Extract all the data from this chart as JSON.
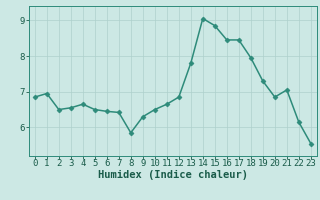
{
  "x": [
    0,
    1,
    2,
    3,
    4,
    5,
    6,
    7,
    8,
    9,
    10,
    11,
    12,
    13,
    14,
    15,
    16,
    17,
    18,
    19,
    20,
    21,
    22,
    23
  ],
  "y": [
    6.85,
    6.95,
    6.5,
    6.55,
    6.65,
    6.5,
    6.45,
    6.42,
    5.85,
    6.3,
    6.5,
    6.65,
    6.85,
    7.8,
    9.05,
    8.85,
    8.45,
    8.45,
    7.95,
    7.3,
    6.85,
    7.05,
    6.15,
    5.55
  ],
  "line_color": "#2e8b7a",
  "marker": "D",
  "marker_size": 2.5,
  "background_color": "#cce8e4",
  "grid_color": "#aed0cc",
  "xlabel": "Humidex (Indice chaleur)",
  "xlim": [
    -0.5,
    23.5
  ],
  "ylim": [
    5.2,
    9.4
  ],
  "yticks": [
    6,
    7,
    8,
    9
  ],
  "xticks": [
    0,
    1,
    2,
    3,
    4,
    5,
    6,
    7,
    8,
    9,
    10,
    11,
    12,
    13,
    14,
    15,
    16,
    17,
    18,
    19,
    20,
    21,
    22,
    23
  ],
  "tick_color": "#1a5c4a",
  "label_color": "#1a5c4a",
  "spine_color": "#2e8b7a",
  "font_size_xlabel": 7.5,
  "font_size_ticks": 6.5,
  "line_width": 1.1
}
